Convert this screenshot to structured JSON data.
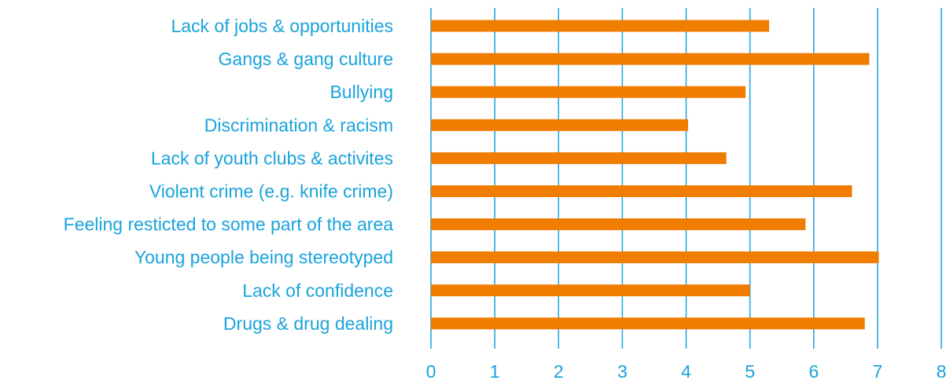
{
  "chart_data": {
    "type": "bar",
    "orientation": "horizontal",
    "categories": [
      "Lack of jobs & opportunities",
      "Gangs & gang culture",
      "Bullying",
      "Discrimination & racism",
      "Lack of youth clubs & activites",
      "Violent crime (e.g. knife crime)",
      "Feeling resticted to some part of the area",
      "Young people being stereotyped",
      "Lack of confidence",
      "Drugs & drug dealing"
    ],
    "values": [
      5.3,
      6.87,
      4.93,
      4.03,
      4.63,
      6.6,
      5.87,
      7.02,
      5.0,
      6.8
    ],
    "xlim": [
      0,
      8
    ],
    "xticks": [
      "0",
      "1",
      "2",
      "3",
      "4",
      "5",
      "6",
      "7",
      "8"
    ],
    "grid": "vertical",
    "title": "",
    "xlabel": "",
    "ylabel": ""
  },
  "colors": {
    "bar": "#f07c00",
    "text": "#1aa3dc",
    "grid": "#1aa3dc"
  }
}
